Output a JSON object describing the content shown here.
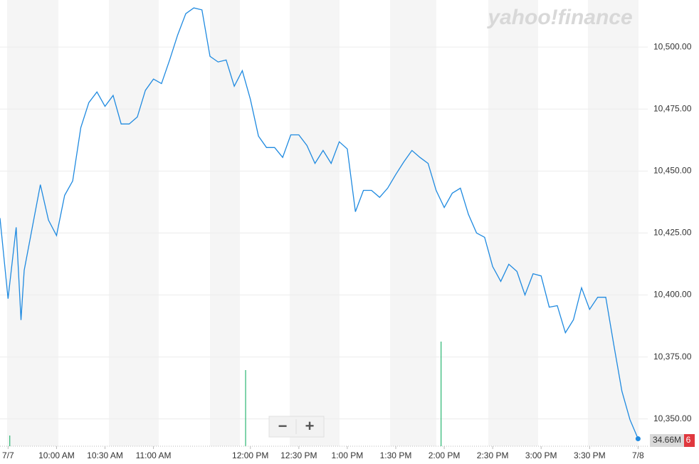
{
  "chart_data": {
    "type": "line",
    "watermark": "yahoo!finance",
    "controls": [
      "−",
      "+"
    ],
    "volume_label": "34.66M",
    "price_label_fragment": "6",
    "x": [
      565,
      570,
      575,
      578,
      580,
      585,
      590,
      595,
      600,
      605,
      610,
      615,
      620,
      625,
      630,
      635,
      640,
      645,
      650,
      655,
      660,
      665,
      670,
      675,
      680,
      685,
      690,
      695,
      700,
      705,
      710,
      715,
      720,
      725,
      730,
      735,
      740,
      745,
      750,
      755,
      760,
      765,
      770,
      775,
      780,
      785,
      790,
      795,
      800,
      805,
      810,
      815,
      820,
      825,
      830,
      835,
      840,
      845,
      850,
      855,
      860,
      865,
      870,
      875,
      880,
      885,
      890,
      895,
      900,
      905,
      910,
      915,
      920,
      925,
      930,
      935,
      940,
      945,
      950,
      955,
      960
    ],
    "series": [
      {
        "name": "Price",
        "color": "#1f8ae0",
        "values": [
          10431.0,
          10398.5,
          10427.3,
          10389.9,
          10410.0,
          10427.3,
          10444.5,
          10430.2,
          10424.0,
          10440.2,
          10446.0,
          10467.5,
          10477.6,
          10481.9,
          10476.1,
          10480.5,
          10469.0,
          10469.0,
          10471.8,
          10482.5,
          10487.1,
          10485.3,
          10494.8,
          10504.9,
          10513.5,
          10515.8,
          10515.0,
          10496.3,
          10494.0,
          10494.8,
          10484.2,
          10490.5,
          10479.0,
          10464.1,
          10459.5,
          10459.5,
          10455.5,
          10464.6,
          10464.6,
          10460.3,
          10453.1,
          10458.3,
          10453.1,
          10461.8,
          10458.9,
          10433.6,
          10442.2,
          10442.2,
          10439.4,
          10443.1,
          10448.6,
          10453.7,
          10458.3,
          10455.5,
          10453.1,
          10442.2,
          10435.3,
          10441.1,
          10443.1,
          10432.5,
          10425.0,
          10423.3,
          10411.5,
          10405.5,
          10412.4,
          10409.5,
          10400.0,
          10408.6,
          10407.7,
          10395.1,
          10395.7,
          10384.8,
          10390.0,
          10402.9,
          10394.2,
          10399.1,
          10399.1,
          10379.9,
          10361.2,
          10349.7,
          10342.0
        ]
      }
    ],
    "volume": {
      "color": "#2bb673",
      "x": [
        571,
        717,
        838
      ],
      "values": [
        7.5,
        53.5,
        73.5
      ],
      "ylim": [
        0,
        100
      ]
    },
    "xlim": [
      565,
      966
    ],
    "ylim": [
      10339,
      10519
    ],
    "xticks": [
      {
        "value": 570,
        "label": "7/7"
      },
      {
        "value": 600,
        "label": "10:00 AM"
      },
      {
        "value": 630,
        "label": "10:30 AM"
      },
      {
        "value": 660,
        "label": "11:00 AM"
      },
      {
        "value": 720,
        "label": "12:00 PM"
      },
      {
        "value": 750,
        "label": "12:30 PM"
      },
      {
        "value": 780,
        "label": "1:00 PM"
      },
      {
        "value": 810,
        "label": "1:30 PM"
      },
      {
        "value": 840,
        "label": "2:00 PM"
      },
      {
        "value": 870,
        "label": "2:30 PM"
      },
      {
        "value": 900,
        "label": "3:00 PM"
      },
      {
        "value": 930,
        "label": "3:30 PM"
      },
      {
        "value": 960,
        "label": "7/8"
      }
    ],
    "yticks": [
      {
        "value": 10350,
        "label": "10,350.00"
      },
      {
        "value": 10375,
        "label": "10,375.00"
      },
      {
        "value": 10400,
        "label": "10,400.00"
      },
      {
        "value": 10425,
        "label": "10,425.00"
      },
      {
        "value": 10450,
        "label": "10,450.00"
      },
      {
        "value": 10475,
        "label": "10,475.00"
      },
      {
        "value": 10500,
        "label": "10,500.00"
      }
    ],
    "grid": true
  }
}
